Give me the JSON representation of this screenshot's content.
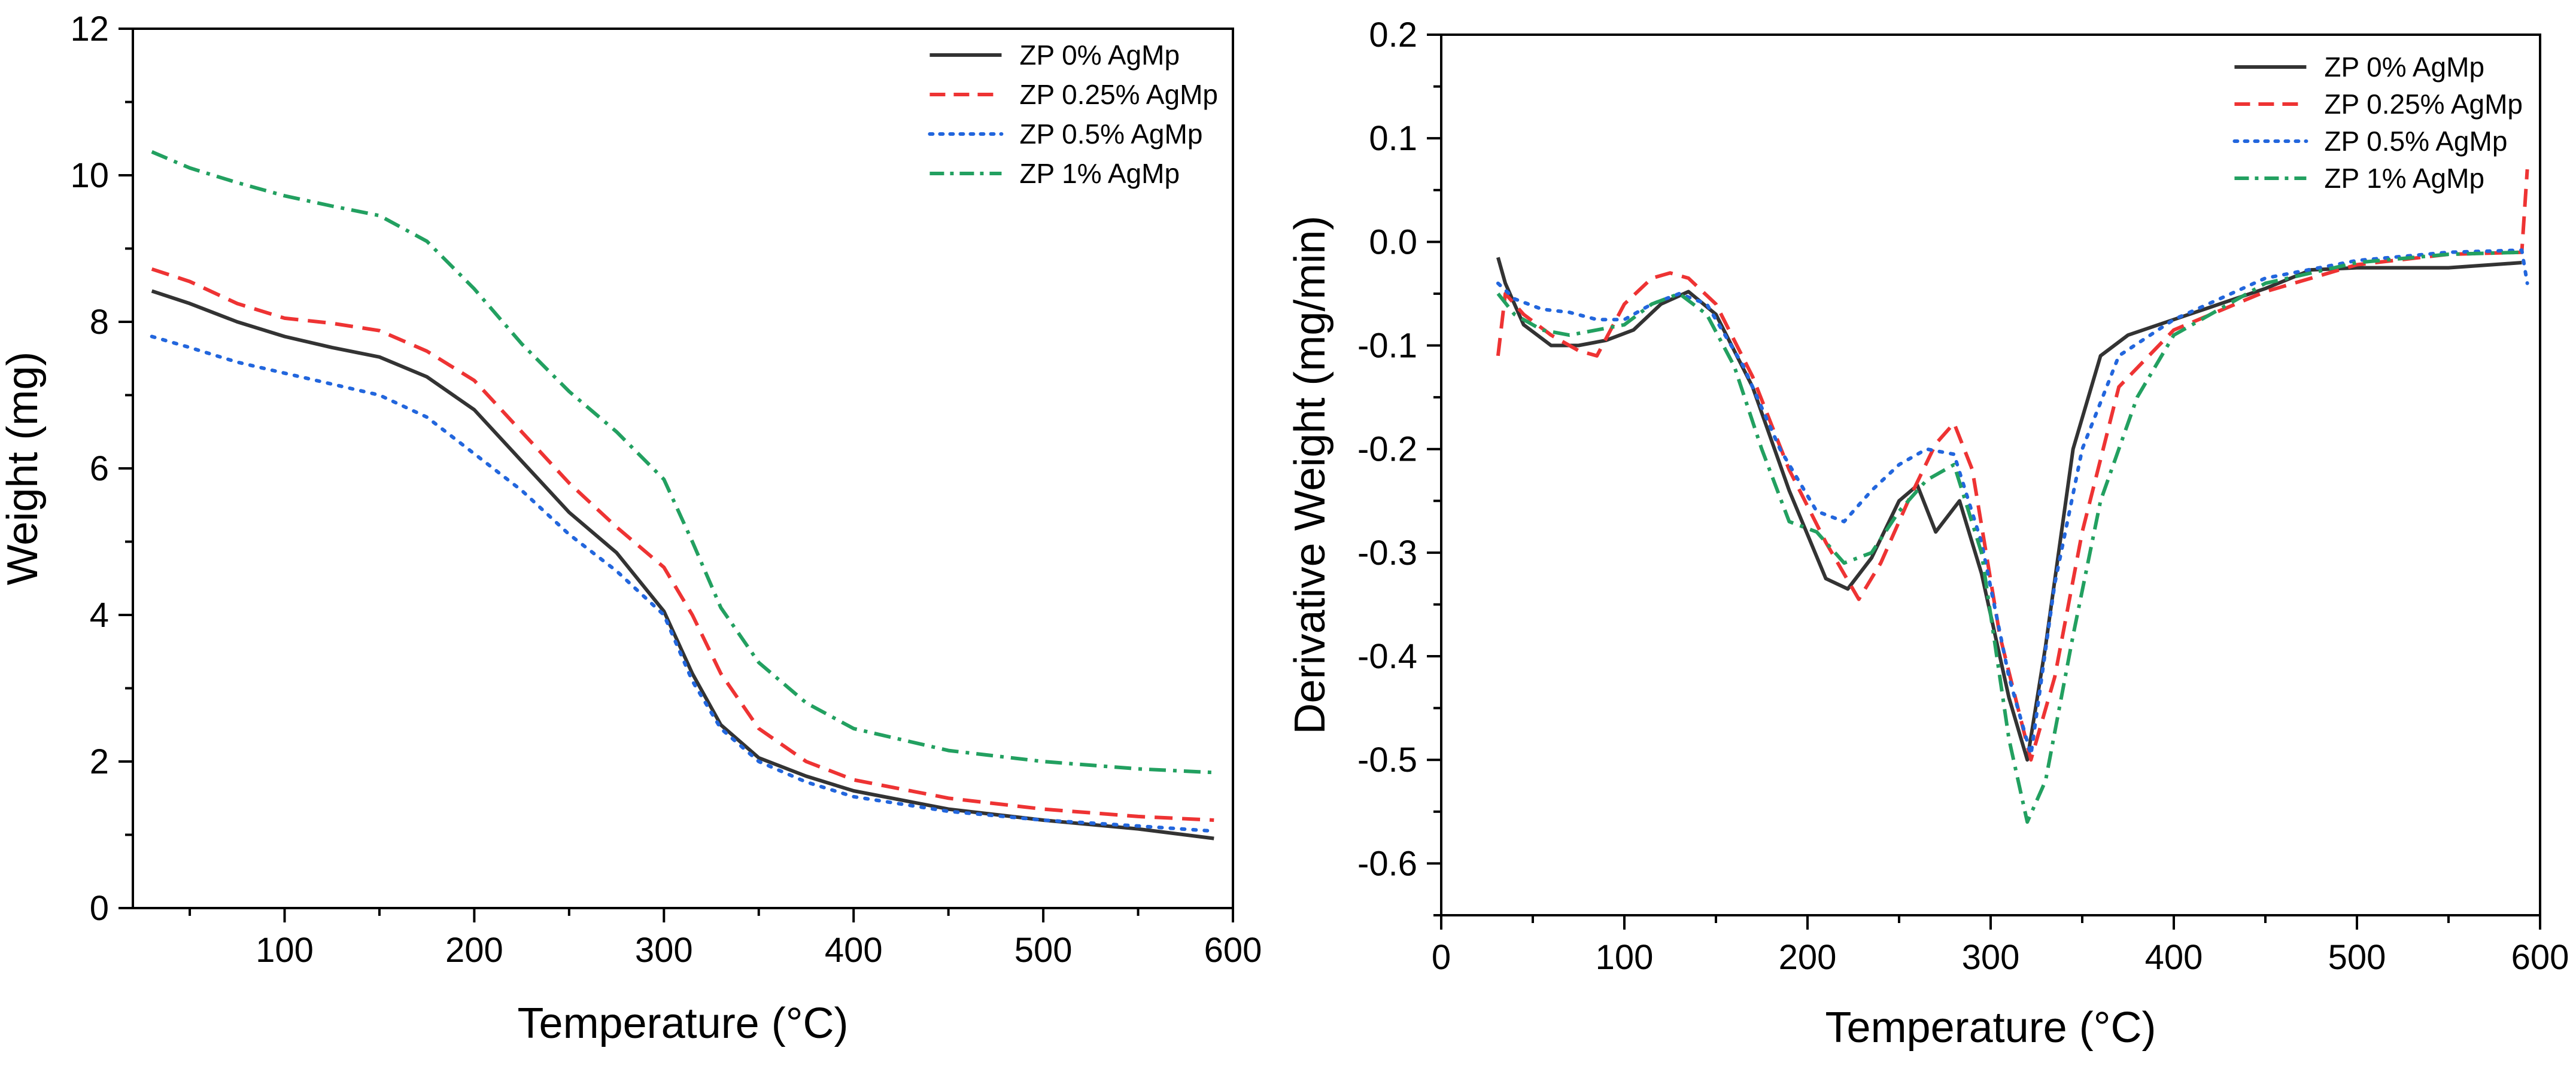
{
  "chart_data": [
    {
      "type": "line",
      "xlabel": "Temperature (°C)",
      "ylabel": "Weight (mg)",
      "xlim": [
        20,
        600
      ],
      "ylim": [
        0,
        12
      ],
      "xticks": [
        100,
        200,
        300,
        400,
        500,
        600
      ],
      "yticks": [
        0,
        2,
        4,
        6,
        8,
        10,
        12
      ],
      "legend_position": "top-right",
      "series": [
        {
          "name": "ZP 0% AgMp",
          "color": "#333333",
          "dash": "solid",
          "x": [
            30,
            50,
            75,
            100,
            125,
            150,
            175,
            200,
            225,
            250,
            275,
            300,
            315,
            330,
            350,
            375,
            400,
            450,
            500,
            550,
            590
          ],
          "y": [
            8.42,
            8.25,
            8.0,
            7.8,
            7.65,
            7.52,
            7.25,
            6.8,
            6.1,
            5.4,
            4.85,
            4.05,
            3.2,
            2.5,
            2.05,
            1.8,
            1.6,
            1.35,
            1.2,
            1.08,
            0.95
          ]
        },
        {
          "name": "ZP 0.25% AgMp",
          "color": "#ee3333",
          "dash": "dashed",
          "x": [
            30,
            50,
            75,
            100,
            125,
            150,
            175,
            200,
            225,
            250,
            275,
            300,
            315,
            330,
            350,
            375,
            400,
            450,
            500,
            550,
            590
          ],
          "y": [
            8.72,
            8.55,
            8.25,
            8.05,
            7.98,
            7.88,
            7.6,
            7.2,
            6.5,
            5.8,
            5.2,
            4.65,
            4.0,
            3.2,
            2.45,
            2.0,
            1.75,
            1.5,
            1.35,
            1.25,
            1.2
          ]
        },
        {
          "name": "ZP 0.5% AgMp",
          "color": "#2266dd",
          "dash": "dotted",
          "x": [
            30,
            50,
            75,
            100,
            125,
            150,
            175,
            200,
            225,
            250,
            275,
            300,
            315,
            330,
            350,
            375,
            400,
            450,
            500,
            550,
            590
          ],
          "y": [
            7.8,
            7.65,
            7.45,
            7.3,
            7.15,
            7.0,
            6.7,
            6.2,
            5.7,
            5.1,
            4.6,
            4.0,
            3.1,
            2.45,
            2.0,
            1.72,
            1.52,
            1.32,
            1.2,
            1.12,
            1.05
          ]
        },
        {
          "name": "ZP 1% AgMp",
          "color": "#22a060",
          "dash": "dashdot",
          "x": [
            30,
            50,
            75,
            100,
            125,
            150,
            175,
            200,
            225,
            250,
            275,
            300,
            315,
            330,
            350,
            375,
            400,
            450,
            500,
            550,
            590
          ],
          "y": [
            10.32,
            10.1,
            9.9,
            9.72,
            9.58,
            9.45,
            9.1,
            8.45,
            7.7,
            7.05,
            6.5,
            5.85,
            5.0,
            4.1,
            3.35,
            2.8,
            2.45,
            2.15,
            2.0,
            1.9,
            1.85
          ]
        }
      ]
    },
    {
      "type": "line",
      "xlabel": "Temperature (°C)",
      "ylabel": "Derivative Weight (mg/min)",
      "xlim": [
        0,
        600
      ],
      "ylim": [
        -0.65,
        0.2
      ],
      "xticks": [
        0,
        100,
        200,
        300,
        400,
        500,
        600
      ],
      "yticks": [
        0.2,
        0.1,
        0.0,
        -0.1,
        -0.2,
        -0.3,
        -0.4,
        -0.5,
        -0.6
      ],
      "legend_position": "top-right",
      "series": [
        {
          "name": "ZP 0% AgMp",
          "color": "#333333",
          "dash": "solid",
          "x": [
            31,
            35,
            45,
            60,
            75,
            90,
            105,
            120,
            135,
            150,
            170,
            190,
            210,
            222,
            235,
            250,
            260,
            270,
            283,
            295,
            310,
            320,
            330,
            345,
            360,
            375,
            400,
            450,
            475,
            500,
            550,
            590
          ],
          "y": [
            -0.015,
            -0.04,
            -0.08,
            -0.1,
            -0.1,
            -0.095,
            -0.085,
            -0.06,
            -0.048,
            -0.07,
            -0.14,
            -0.24,
            -0.325,
            -0.335,
            -0.305,
            -0.25,
            -0.235,
            -0.28,
            -0.25,
            -0.32,
            -0.44,
            -0.5,
            -0.39,
            -0.2,
            -0.11,
            -0.09,
            -0.075,
            -0.045,
            -0.027,
            -0.025,
            -0.025,
            -0.02
          ]
        },
        {
          "name": "ZP 0.25% AgMp",
          "color": "#ee3333",
          "dash": "dashed",
          "x": [
            31,
            35,
            45,
            60,
            75,
            85,
            100,
            115,
            125,
            135,
            150,
            170,
            190,
            210,
            228,
            240,
            255,
            270,
            280,
            290,
            305,
            322,
            335,
            350,
            370,
            400,
            450,
            500,
            550,
            590,
            593
          ],
          "y": [
            -0.11,
            -0.05,
            -0.07,
            -0.09,
            -0.105,
            -0.11,
            -0.06,
            -0.035,
            -0.03,
            -0.035,
            -0.06,
            -0.13,
            -0.22,
            -0.29,
            -0.345,
            -0.31,
            -0.25,
            -0.195,
            -0.175,
            -0.22,
            -0.38,
            -0.5,
            -0.42,
            -0.28,
            -0.14,
            -0.085,
            -0.048,
            -0.022,
            -0.012,
            -0.01,
            0.07
          ]
        },
        {
          "name": "ZP 0.5% AgMp",
          "color": "#2266dd",
          "dash": "dotted",
          "x": [
            31,
            40,
            55,
            70,
            85,
            100,
            115,
            130,
            145,
            165,
            185,
            205,
            220,
            235,
            250,
            265,
            280,
            295,
            310,
            322,
            335,
            350,
            370,
            400,
            450,
            500,
            550,
            590,
            593
          ],
          "y": [
            -0.04,
            -0.055,
            -0.065,
            -0.068,
            -0.075,
            -0.075,
            -0.06,
            -0.05,
            -0.06,
            -0.12,
            -0.2,
            -0.26,
            -0.27,
            -0.24,
            -0.215,
            -0.2,
            -0.205,
            -0.29,
            -0.42,
            -0.495,
            -0.33,
            -0.2,
            -0.11,
            -0.075,
            -0.035,
            -0.018,
            -0.01,
            -0.008,
            -0.04
          ]
        },
        {
          "name": "ZP 1% AgMp",
          "color": "#22a060",
          "dash": "dashdot",
          "x": [
            31,
            40,
            55,
            70,
            85,
            100,
            115,
            130,
            145,
            160,
            175,
            190,
            205,
            220,
            235,
            250,
            265,
            280,
            295,
            310,
            320,
            330,
            345,
            360,
            380,
            400,
            450,
            500,
            550,
            590
          ],
          "y": [
            -0.05,
            -0.07,
            -0.085,
            -0.09,
            -0.085,
            -0.08,
            -0.06,
            -0.05,
            -0.07,
            -0.12,
            -0.2,
            -0.27,
            -0.28,
            -0.31,
            -0.3,
            -0.26,
            -0.23,
            -0.215,
            -0.3,
            -0.48,
            -0.56,
            -0.52,
            -0.38,
            -0.25,
            -0.15,
            -0.09,
            -0.04,
            -0.02,
            -0.012,
            -0.01
          ]
        }
      ]
    }
  ]
}
